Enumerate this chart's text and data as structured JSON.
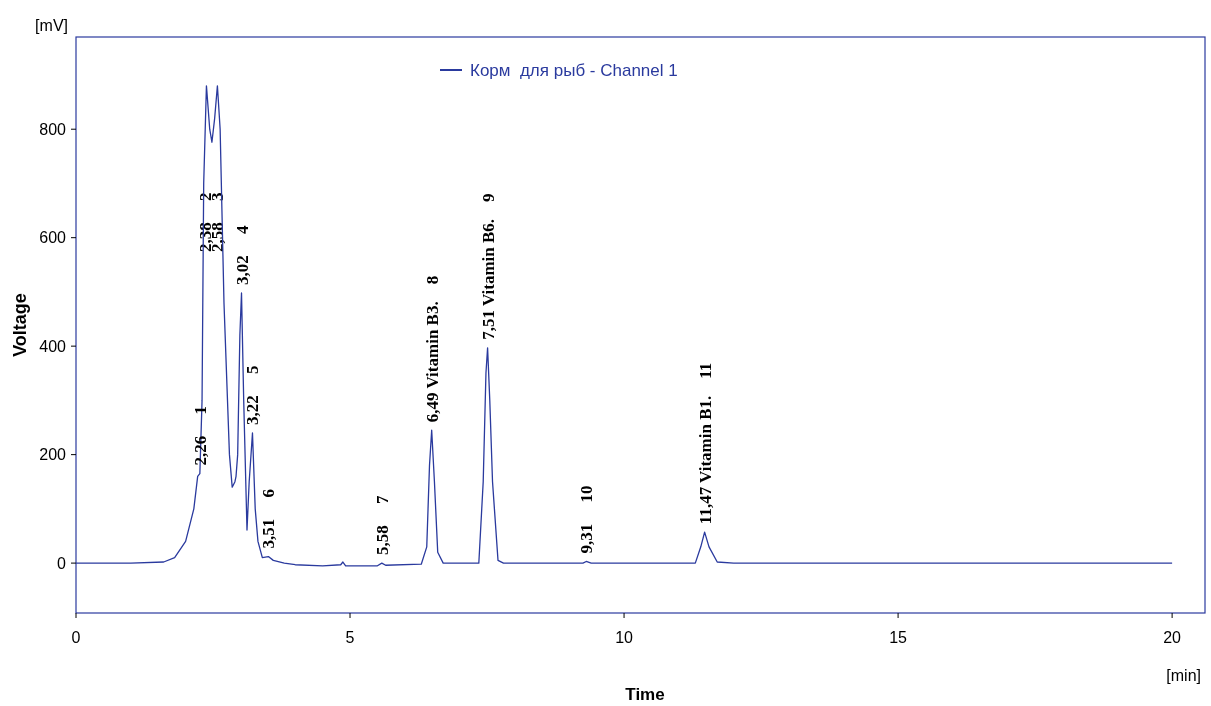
{
  "chart_data": {
    "type": "line",
    "xlabel": "Time",
    "ylabel": "Voltage",
    "xlim": [
      0,
      20.6
    ],
    "ylim": [
      -92,
      970
    ],
    "xticks": [
      0,
      5,
      10,
      15,
      20
    ],
    "yticks": [
      0,
      200,
      400,
      600,
      800
    ],
    "grid": false,
    "legend": "top",
    "marker": "none",
    "line_style": "solid",
    "series": [
      {
        "name": "Корм  для рыб - Channel 1",
        "color": "#2a3a9e",
        "x": [
          0,
          1.0,
          1.6,
          1.8,
          2.0,
          2.15,
          2.22,
          2.26,
          2.3,
          2.33,
          2.38,
          2.44,
          2.48,
          2.53,
          2.58,
          2.63,
          2.7,
          2.8,
          2.85,
          2.9,
          2.92,
          2.95,
          2.99,
          3.02,
          3.06,
          3.12,
          3.16,
          3.22,
          3.27,
          3.32,
          3.4,
          3.51,
          3.6,
          3.8,
          4.0,
          4.5,
          4.83,
          4.87,
          4.92,
          5.5,
          5.58,
          5.65,
          6.3,
          6.4,
          6.45,
          6.49,
          6.54,
          6.6,
          6.7,
          7.35,
          7.43,
          7.48,
          7.51,
          7.55,
          7.6,
          7.7,
          7.8,
          9.25,
          9.31,
          9.4,
          11.3,
          11.4,
          11.47,
          11.55,
          11.7,
          12.0,
          20.0
        ],
        "values": [
          0,
          0,
          2,
          10,
          40,
          100,
          160,
          165,
          300,
          700,
          880,
          800,
          776,
          820,
          880,
          800,
          480,
          200,
          140,
          150,
          160,
          200,
          420,
          498,
          300,
          61,
          150,
          240,
          100,
          40,
          10,
          12,
          5,
          0,
          -3,
          -5,
          -3,
          2,
          -5,
          -5,
          0,
          -4,
          -2,
          30,
          180,
          245,
          150,
          20,
          0,
          0,
          150,
          350,
          397,
          300,
          150,
          5,
          0,
          0,
          3,
          0,
          0,
          30,
          57,
          30,
          2,
          0,
          0
        ]
      }
    ],
    "annotations": [
      "[mV]",
      "[min]",
      "2,38     2",
      "2,58     3",
      {
        "text": "2,26     1",
        "x": 2.26,
        "y": 165
      },
      {
        "text": "3,02     4",
        "x": 3.02,
        "y": 498
      },
      {
        "text": "3,22     5",
        "x": 3.22,
        "y": 240
      },
      {
        "text": "3,51     6",
        "x": 3.51,
        "y": 12
      },
      {
        "text": "5,58     7",
        "x": 5.58,
        "y": 0
      },
      {
        "text": "6,49 Vitamin B3.    8",
        "x": 6.49,
        "y": 245
      },
      {
        "text": "7,51 Vitamin B6.    9",
        "x": 7.51,
        "y": 397
      },
      {
        "text": "9,31     10",
        "x": 9.31,
        "y": 3
      },
      {
        "text": "11,47 Vitamin B1.    11",
        "x": 11.47,
        "y": 57
      }
    ]
  }
}
